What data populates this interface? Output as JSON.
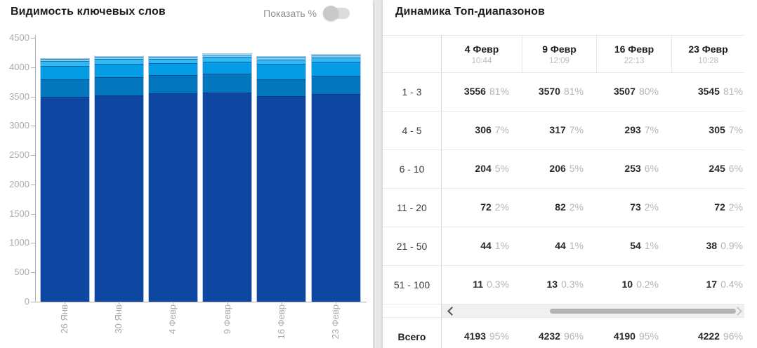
{
  "left_panel": {
    "title": "Видимость ключевых слов",
    "toggle_label": "Показать %",
    "show_percent_enabled": false
  },
  "chart_data": {
    "type": "bar",
    "stacked": true,
    "title": "Видимость ключевых слов",
    "categories": [
      "26 Янв",
      "30 Янв",
      "4 Февр",
      "9 Февр",
      "16 Февр",
      "23 Февр"
    ],
    "series": [
      {
        "name": "1 - 3",
        "color": "#0d47a1",
        "values": [
          3490,
          3520,
          3556,
          3570,
          3507,
          3545
        ]
      },
      {
        "name": "4 - 5",
        "color": "#0277bd",
        "values": [
          300,
          310,
          306,
          317,
          293,
          305
        ]
      },
      {
        "name": "6 - 10",
        "color": "#039ce5",
        "values": [
          230,
          225,
          204,
          206,
          253,
          245
        ]
      },
      {
        "name": "11 - 20",
        "color": "#30b9f2",
        "values": [
          80,
          82,
          72,
          82,
          73,
          72
        ]
      },
      {
        "name": "21 - 50",
        "color": "#7fd0f5",
        "values": [
          45,
          45,
          44,
          44,
          54,
          38
        ]
      },
      {
        "name": "51 - 100",
        "color": "#c2e7fa",
        "values": [
          12,
          13,
          11,
          13,
          10,
          17
        ]
      }
    ],
    "xlabel": "",
    "ylabel": "",
    "ylim": [
      0,
      4500
    ],
    "ytick_step": 500,
    "grid": false,
    "legend": "none"
  },
  "table": {
    "title": "Динамика Топ-диапазонов",
    "columns": [
      {
        "date": "4 Февр",
        "time": "10:44"
      },
      {
        "date": "9 Февр",
        "time": "12:09"
      },
      {
        "date": "16 Февр",
        "time": "22:13"
      },
      {
        "date": "23 Февр",
        "time": "10:28"
      }
    ],
    "rows": [
      {
        "range": "1 - 3",
        "cells": [
          {
            "value": "3556",
            "pct": "81%"
          },
          {
            "value": "3570",
            "pct": "81%"
          },
          {
            "value": "3507",
            "pct": "80%"
          },
          {
            "value": "3545",
            "pct": "81%"
          }
        ]
      },
      {
        "range": "4 - 5",
        "cells": [
          {
            "value": "306",
            "pct": "7%"
          },
          {
            "value": "317",
            "pct": "7%"
          },
          {
            "value": "293",
            "pct": "7%"
          },
          {
            "value": "305",
            "pct": "7%"
          }
        ]
      },
      {
        "range": "6 - 10",
        "cells": [
          {
            "value": "204",
            "pct": "5%"
          },
          {
            "value": "206",
            "pct": "5%"
          },
          {
            "value": "253",
            "pct": "6%"
          },
          {
            "value": "245",
            "pct": "6%"
          }
        ]
      },
      {
        "range": "11 - 20",
        "cells": [
          {
            "value": "72",
            "pct": "2%"
          },
          {
            "value": "82",
            "pct": "2%"
          },
          {
            "value": "73",
            "pct": "2%"
          },
          {
            "value": "72",
            "pct": "2%"
          }
        ]
      },
      {
        "range": "21 - 50",
        "cells": [
          {
            "value": "44",
            "pct": "1%"
          },
          {
            "value": "44",
            "pct": "1%"
          },
          {
            "value": "54",
            "pct": "1%"
          },
          {
            "value": "38",
            "pct": "0.9%"
          }
        ]
      },
      {
        "range": "51 - 100",
        "cells": [
          {
            "value": "11",
            "pct": "0.3%"
          },
          {
            "value": "13",
            "pct": "0.3%"
          },
          {
            "value": "10",
            "pct": "0.2%"
          },
          {
            "value": "17",
            "pct": "0.4%"
          }
        ]
      }
    ],
    "total": {
      "label": "Всего",
      "cells": [
        {
          "value": "4193",
          "pct": "95%"
        },
        {
          "value": "4232",
          "pct": "96%"
        },
        {
          "value": "4190",
          "pct": "95%"
        },
        {
          "value": "4222",
          "pct": "96%"
        }
      ]
    },
    "icons": {
      "scroll_left": "chevron-left",
      "scroll_right": "chevron-right"
    }
  },
  "ui_colors": {
    "axis": "#b2b2b2",
    "toggle_track": "#dcdcdc",
    "toggle_knob": "#c9c9c9",
    "row_border": "#e8e8e8"
  }
}
